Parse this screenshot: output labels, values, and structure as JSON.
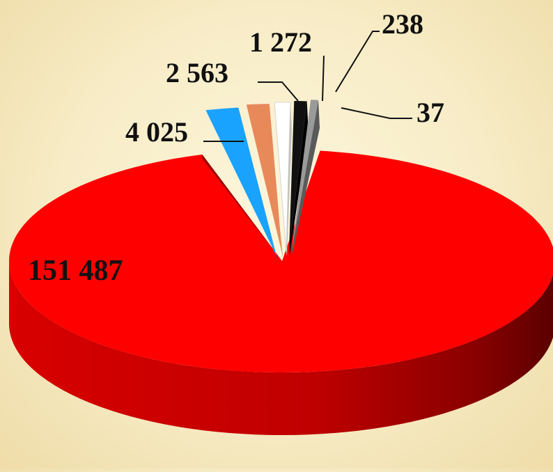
{
  "chart_data": {
    "type": "pie",
    "style": "3d-exploded",
    "title": "",
    "slices": [
      {
        "label": "151 487",
        "value": 151487,
        "color": "#ff0000",
        "side_color": "#b00000"
      },
      {
        "label": "4 025",
        "value": 4025,
        "color": "#19a3ff",
        "side_color": "#0b4f86"
      },
      {
        "label": "2 563",
        "value": 2563,
        "color": "#e8895a",
        "side_color": "#a5532e"
      },
      {
        "label": "1 272",
        "value": 1272,
        "color": "#ffffff",
        "side_color": "#bfbfbf"
      },
      {
        "label": "238",
        "value": 238,
        "color": "#111111",
        "side_color": "#000000"
      },
      {
        "label": "37",
        "value": 37,
        "color": "#9a9a9a",
        "side_color": "#5a5a5a"
      }
    ],
    "legend": "none",
    "data_labels": "outside-with-leader-lines"
  }
}
